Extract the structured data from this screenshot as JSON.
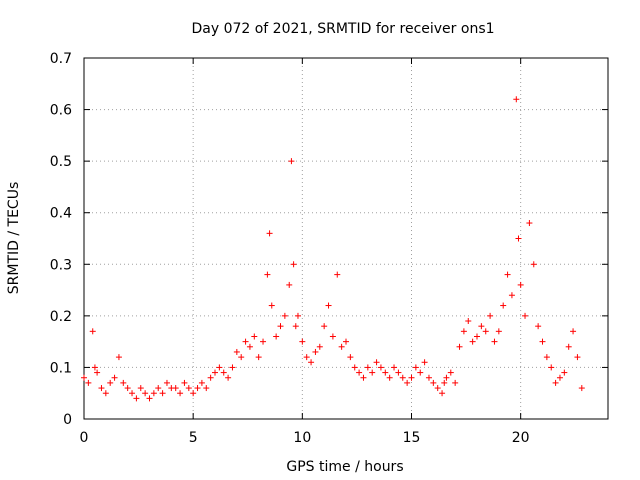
{
  "chart_data": {
    "type": "scatter",
    "title": "Day 072 of 2021, SRMTID for receiver ons1",
    "xlabel": "GPS time / hours",
    "ylabel": "SRMTID / TECUs",
    "xlim": [
      0,
      24
    ],
    "ylim": [
      0,
      0.7
    ],
    "xticks": [
      0,
      5,
      10,
      15,
      20
    ],
    "yticks": [
      0,
      0.1,
      0.2,
      0.3,
      0.4,
      0.5,
      0.6,
      0.7
    ],
    "xtick_labels": [
      "0",
      "5",
      "10",
      "15",
      "20"
    ],
    "ytick_labels": [
      "0",
      "0.1",
      "0.2",
      "0.3",
      "0.4",
      "0.5",
      "0.6",
      "0.7"
    ],
    "grid": true,
    "marker": "+",
    "color": "#ff0000",
    "series": [
      {
        "name": "SRMTID",
        "x": [
          0.0,
          0.2,
          0.4,
          0.5,
          0.6,
          0.8,
          1.0,
          1.2,
          1.4,
          1.6,
          1.8,
          2.0,
          2.2,
          2.4,
          2.6,
          2.8,
          3.0,
          3.2,
          3.4,
          3.6,
          3.8,
          4.0,
          4.2,
          4.4,
          4.6,
          4.8,
          5.0,
          5.2,
          5.4,
          5.6,
          5.8,
          6.0,
          6.2,
          6.4,
          6.6,
          6.8,
          7.0,
          7.2,
          7.4,
          7.6,
          7.8,
          8.0,
          8.2,
          8.4,
          8.5,
          8.6,
          8.8,
          9.0,
          9.2,
          9.4,
          9.5,
          9.6,
          9.7,
          9.8,
          10.0,
          10.2,
          10.4,
          10.6,
          10.8,
          11.0,
          11.2,
          11.4,
          11.6,
          11.8,
          12.0,
          12.2,
          12.4,
          12.6,
          12.8,
          13.0,
          13.2,
          13.4,
          13.6,
          13.8,
          14.0,
          14.2,
          14.4,
          14.6,
          14.8,
          15.0,
          15.2,
          15.4,
          15.6,
          15.8,
          16.0,
          16.2,
          16.4,
          16.5,
          16.6,
          16.8,
          17.0,
          17.2,
          17.4,
          17.6,
          17.8,
          18.0,
          18.2,
          18.4,
          18.6,
          18.8,
          19.0,
          19.2,
          19.4,
          19.6,
          19.8,
          19.9,
          20.0,
          20.2,
          20.4,
          20.6,
          20.8,
          21.0,
          21.2,
          21.4,
          21.6,
          21.8,
          22.0,
          22.2,
          22.4,
          22.6,
          22.8
        ],
        "y": [
          0.08,
          0.07,
          0.17,
          0.1,
          0.09,
          0.06,
          0.05,
          0.07,
          0.08,
          0.12,
          0.07,
          0.06,
          0.05,
          0.04,
          0.06,
          0.05,
          0.04,
          0.05,
          0.06,
          0.05,
          0.07,
          0.06,
          0.06,
          0.05,
          0.07,
          0.06,
          0.05,
          0.06,
          0.07,
          0.06,
          0.08,
          0.09,
          0.1,
          0.09,
          0.08,
          0.1,
          0.13,
          0.12,
          0.15,
          0.14,
          0.16,
          0.12,
          0.15,
          0.28,
          0.36,
          0.22,
          0.16,
          0.18,
          0.2,
          0.26,
          0.5,
          0.3,
          0.18,
          0.2,
          0.15,
          0.12,
          0.11,
          0.13,
          0.14,
          0.18,
          0.22,
          0.16,
          0.28,
          0.14,
          0.15,
          0.12,
          0.1,
          0.09,
          0.08,
          0.1,
          0.09,
          0.11,
          0.1,
          0.09,
          0.08,
          0.1,
          0.09,
          0.08,
          0.07,
          0.08,
          0.1,
          0.09,
          0.11,
          0.08,
          0.07,
          0.06,
          0.05,
          0.07,
          0.08,
          0.09,
          0.07,
          0.14,
          0.17,
          0.19,
          0.15,
          0.16,
          0.18,
          0.17,
          0.2,
          0.15,
          0.17,
          0.22,
          0.28,
          0.24,
          0.62,
          0.35,
          0.26,
          0.2,
          0.38,
          0.3,
          0.18,
          0.15,
          0.12,
          0.1,
          0.07,
          0.08,
          0.09,
          0.14,
          0.17,
          0.12,
          0.06
        ]
      }
    ]
  }
}
